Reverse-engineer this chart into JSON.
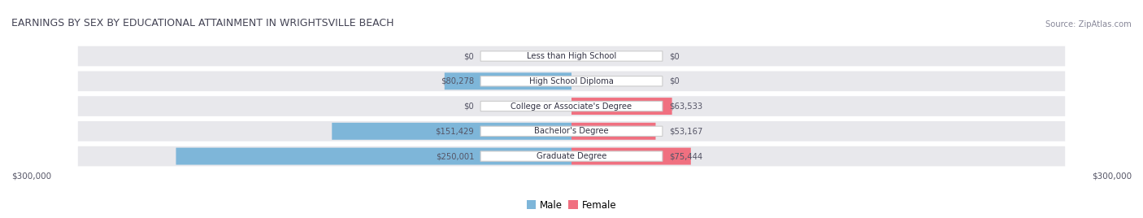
{
  "title": "EARNINGS BY SEX BY EDUCATIONAL ATTAINMENT IN WRIGHTSVILLE BEACH",
  "source": "Source: ZipAtlas.com",
  "categories": [
    "Less than High School",
    "High School Diploma",
    "College or Associate's Degree",
    "Bachelor's Degree",
    "Graduate Degree"
  ],
  "male_values": [
    0,
    80278,
    0,
    151429,
    250001
  ],
  "female_values": [
    0,
    0,
    63533,
    53167,
    75444
  ],
  "male_labels": [
    "$0",
    "$80,278",
    "$0",
    "$151,429",
    "$250,001"
  ],
  "female_labels": [
    "$0",
    "$0",
    "$63,533",
    "$53,167",
    "$75,444"
  ],
  "male_color": "#7eb6d9",
  "female_color": "#f07080",
  "row_bg_color": "#e8e8ec",
  "row_bg_color2": "#d8d8de",
  "max_value": 300000,
  "xlabel_left": "$300,000",
  "xlabel_right": "$300,000",
  "legend_male": "Male",
  "legend_female": "Female",
  "background_color": "#ffffff",
  "title_color": "#444455",
  "source_color": "#888899",
  "label_color": "#555566",
  "cat_label_color": "#333344"
}
